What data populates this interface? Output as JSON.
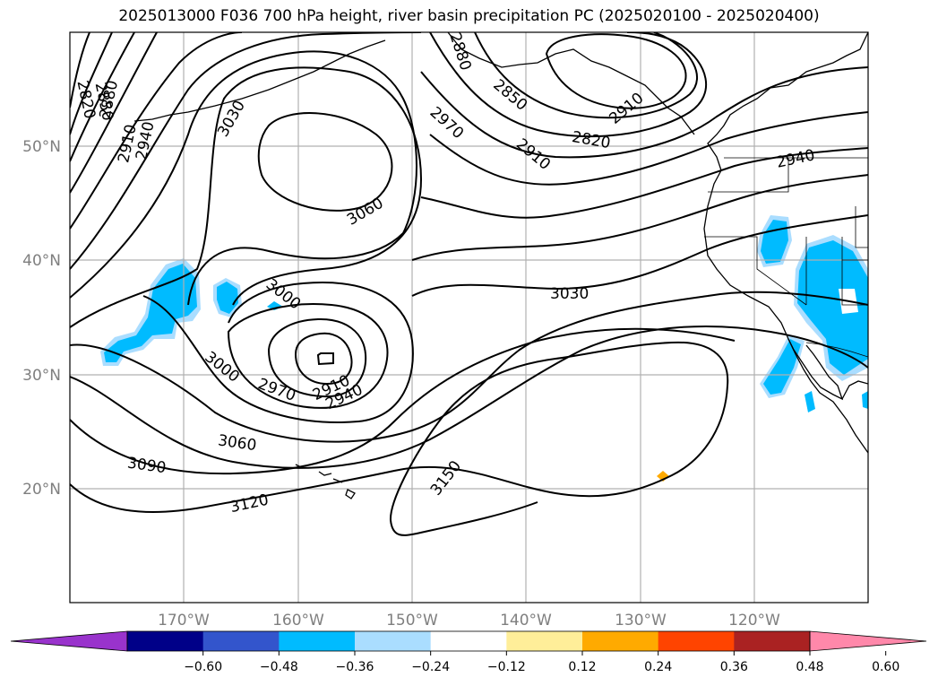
{
  "title": "2025013000 F036 700 hPa height, river basin precipitation PC (2025020100 - 2025020400)",
  "map": {
    "projection": "PlateCarree",
    "lon_range": [
      -180,
      -110
    ],
    "lat_range": [
      10,
      60
    ],
    "grid": true,
    "lat_ticks": [
      "50°N",
      "40°N",
      "30°N",
      "20°N"
    ],
    "lon_ticks": [
      "170°W",
      "160°W",
      "150°W",
      "140°W",
      "130°W",
      "120°W"
    ]
  },
  "chart_data": {
    "type": "contour",
    "variable": "700 hPa height",
    "contour_interval": 30,
    "contour_labels": [
      "2820",
      "2850",
      "2880",
      "2910",
      "2940",
      "2970",
      "3000",
      "3030",
      "3060",
      "3090",
      "3120",
      "3150",
      "3060",
      "2910",
      "2940",
      "2970",
      "3000",
      "3030",
      "2880",
      "2850",
      "2820",
      "2910",
      "2940",
      "2970",
      "2910",
      "2940"
    ],
    "features": [
      {
        "kind": "high",
        "center_lon": -159,
        "center_lat": 48,
        "value": 3060
      },
      {
        "kind": "low",
        "center_lon": -158,
        "center_lat": 31,
        "value": 2910
      },
      {
        "kind": "low",
        "center_lon": -135,
        "center_lat": 55,
        "value": 2820
      },
      {
        "kind": "high_ridge",
        "center_lon": -135,
        "center_lat": 23,
        "value": 3150
      }
    ],
    "fill_variable": "river basin precipitation PC",
    "fill_regions": [
      {
        "name": "central-pacific-negative",
        "lon": -170,
        "lat": 36,
        "value": -0.36
      },
      {
        "name": "california-negative",
        "lon": -117,
        "lat": 38,
        "value": -0.36
      },
      {
        "name": "baja-negative",
        "lon": -115,
        "lat": 30,
        "value": -0.36
      },
      {
        "name": "east-pacific-positive",
        "lon": -128.5,
        "lat": 21,
        "value": 0.24
      }
    ],
    "colorbar": {
      "extend": "both",
      "ticks": [
        "−0.60",
        "−0.48",
        "−0.36",
        "−0.24",
        "−0.12",
        "0.12",
        "0.24",
        "0.36",
        "0.48",
        "0.60"
      ],
      "colors": [
        "#9933cc",
        "#000088",
        "#3355cc",
        "#00bbff",
        "#aaddff",
        "#ffffff",
        "#ffee99",
        "#ffaa00",
        "#ff4400",
        "#aa2222",
        "#ff88aa"
      ]
    }
  }
}
